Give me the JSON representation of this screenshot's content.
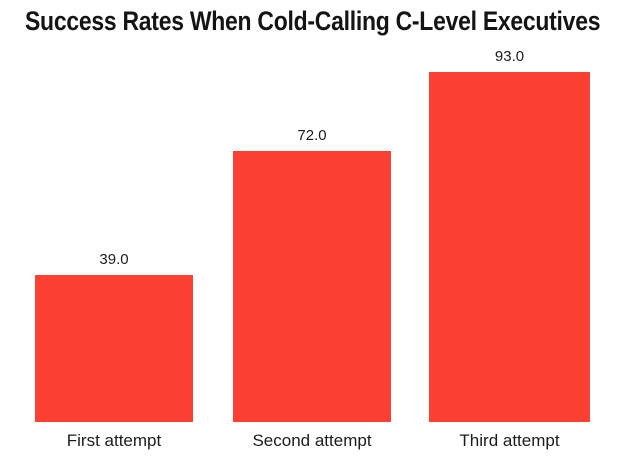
{
  "chart_data": {
    "type": "bar",
    "title": "Success Rates When Cold-Calling C-Level Executives",
    "categories": [
      "First attempt",
      "Second attempt",
      "Third attempt"
    ],
    "values": [
      39.0,
      72.0,
      93.0
    ],
    "value_labels": [
      "39.0",
      "72.0",
      "93.0"
    ],
    "xlabel": "",
    "ylabel": "",
    "ylim": [
      0,
      100
    ],
    "bar_color": "#fc4032",
    "grid": false,
    "legend": false
  }
}
